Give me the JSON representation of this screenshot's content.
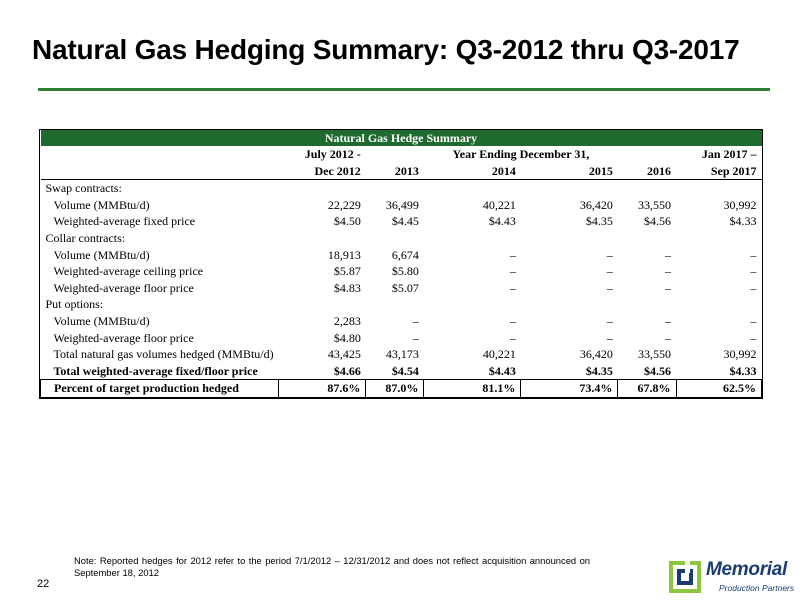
{
  "page": {
    "title": "Natural Gas Hedging Summary: Q3-2012 thru Q3-2017",
    "number": "22"
  },
  "table": {
    "caption": "Natural Gas Hedge Summary",
    "header_row1": [
      "",
      "July 2012 -",
      "",
      "Year Ending December 31,",
      "",
      "",
      "Jan 2017 –"
    ],
    "header_row2": [
      "",
      "Dec 2012",
      "2013",
      "2014",
      "2015",
      "2016",
      "Sep 2017"
    ],
    "rows": [
      {
        "label": "Swap contracts:",
        "values": [
          "",
          "",
          "",
          "",
          "",
          ""
        ]
      },
      {
        "label": "Volume (MMBtu/d)",
        "values": [
          "22,229",
          "36,499",
          "40,221",
          "36,420",
          "33,550",
          "30,992"
        ]
      },
      {
        "label": "Weighted-average fixed price",
        "values": [
          "$4.50",
          "$4.45",
          "$4.43",
          "$4.35",
          "$4.56",
          "$4.33"
        ]
      },
      {
        "label": "Collar contracts:",
        "values": [
          "",
          "",
          "",
          "",
          "",
          ""
        ]
      },
      {
        "label": "Volume (MMBtu/d)",
        "values": [
          "18,913",
          "6,674",
          "–",
          "–",
          "–",
          "–"
        ]
      },
      {
        "label": "Weighted-average ceiling price",
        "values": [
          "$5.87",
          "$5.80",
          "–",
          "–",
          "–",
          "–"
        ]
      },
      {
        "label": "Weighted-average floor price",
        "values": [
          "$4.83",
          "$5.07",
          "–",
          "–",
          "–",
          "–"
        ]
      },
      {
        "label": "Put options:",
        "values": [
          "",
          "",
          "",
          "",
          "",
          ""
        ]
      },
      {
        "label": "Volume (MMBtu/d)",
        "values": [
          "2,283",
          "–",
          "–",
          "–",
          "–",
          "–"
        ]
      },
      {
        "label": "Weighted-average floor price",
        "values": [
          "$4.80",
          "–",
          "–",
          "–",
          "–",
          "–"
        ]
      },
      {
        "label": "Total natural gas volumes hedged (MMBtu/d)",
        "values": [
          "43,425",
          "43,173",
          "40,221",
          "36,420",
          "33,550",
          "30,992"
        ]
      },
      {
        "label": "Total weighted-average fixed/floor price",
        "values": [
          "$4.66",
          "$4.54",
          "$4.43",
          "$4.35",
          "$4.56",
          "$4.33"
        ]
      },
      {
        "label": "Percent of target production hedged",
        "values": [
          "87.6%",
          "87.0%",
          "81.1%",
          "73.4%",
          "67.8%",
          "62.5%"
        ]
      }
    ]
  },
  "footnote": "Note: Reported hedges for 2012 refer to the period 7/1/2012 – 12/31/2012 and does not reflect acquisition announced on September 18, 2012",
  "logo": {
    "name": "Memorial",
    "subtitle": "Production Partners",
    "icon": "memorial-logo-icon"
  },
  "colors": {
    "accent_green": "#1f6b2f",
    "logo_blue": "#1a3c73",
    "logo_green": "#8cc63f"
  }
}
